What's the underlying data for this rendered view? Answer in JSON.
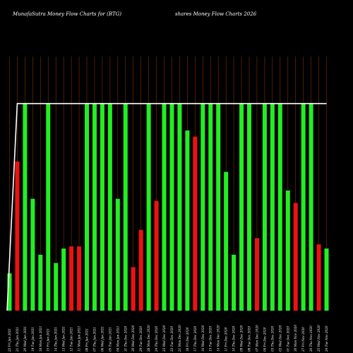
{
  "chart_data": {
    "type": "bar",
    "title": "MunafaSutra Money Flow Charts for (BTG)",
    "title_right": "shares Money Flow Charts 2026",
    "categories": [
      "22 Fri Jan 2021",
      "21 Thu Jan 2021",
      "20 Wed Jan 2021",
      "19 Tue Jan 2021",
      "18 Mon Jan 2021",
      "15 Fri Jan 2021",
      "14 Thu Jan 2021",
      "13 Wed Jan 2021",
      "12 Tue Jan 2021",
      "11 Mon Jan 2021",
      "08 Fri Jan 2021",
      "07 Thu Jan 2021",
      "06 Wed Jan 2021",
      "05 Tue Jan 2021",
      "04 Mon Jan 2021",
      "31 Thu Dec 2020",
      "30 Wed Dec 2020",
      "29 Tue Dec 2020",
      "28 Mon Dec 2020",
      "24 Thu Dec 2020",
      "23 Wed Dec 2020",
      "22 Tue Dec 2020",
      "21 Mon Dec 2020",
      "18 Fri Dec 2020",
      "17 Thu Dec 2020",
      "16 Wed Dec 2020",
      "15 Tue Dec 2020",
      "14 Mon Dec 2020",
      "11 Fri Dec 2020",
      "10 Thu Dec 2020",
      "09 Wed Dec 2020",
      "08 Tue Dec 2020",
      "07 Mon Dec 2020",
      "04 Fri Dec 2020",
      "03 Thu Dec 2020",
      "02 Wed Dec 2020",
      "01 Tue Dec 2020",
      "30 Mon Nov 2020",
      "27 Fri Nov 2020",
      "26 Thu Nov 2020",
      "25 Wed Nov 2020",
      "24 Tue Nov 2020"
    ],
    "values": [
      18,
      72,
      100,
      54,
      27,
      100,
      23,
      30,
      31,
      31,
      100,
      100,
      100,
      100,
      54,
      100,
      21,
      39,
      100,
      53,
      100,
      100,
      100,
      87,
      84,
      100,
      100,
      100,
      67,
      27,
      100,
      100,
      35,
      100,
      100,
      100,
      58,
      52,
      100,
      100,
      32,
      30
    ],
    "colors": [
      "green",
      "red",
      "green",
      "green",
      "green",
      "green",
      "green",
      "green",
      "red",
      "red",
      "green",
      "green",
      "green",
      "green",
      "green",
      "green",
      "red",
      "red",
      "green",
      "red",
      "green",
      "green",
      "green",
      "green",
      "red",
      "green",
      "green",
      "green",
      "green",
      "green",
      "green",
      "green",
      "red",
      "green",
      "green",
      "green",
      "green",
      "red",
      "green",
      "green",
      "red",
      "green"
    ],
    "line_values": [
      0,
      100,
      100,
      100,
      100,
      100,
      100,
      100,
      100,
      100,
      100,
      100,
      100,
      100,
      100,
      100,
      100,
      100,
      100,
      100,
      100,
      100,
      100,
      100,
      100,
      100,
      100,
      100,
      100,
      100,
      100,
      100,
      100,
      100,
      100,
      100,
      100,
      100,
      100,
      100,
      100,
      100
    ],
    "ylim": [
      0,
      150
    ],
    "palette": {
      "green": "#22ee22",
      "red": "#ee1111",
      "background": "#000000",
      "grid": "#7a3300",
      "line": "#ffffff"
    },
    "xlabel": "",
    "ylabel": ""
  }
}
